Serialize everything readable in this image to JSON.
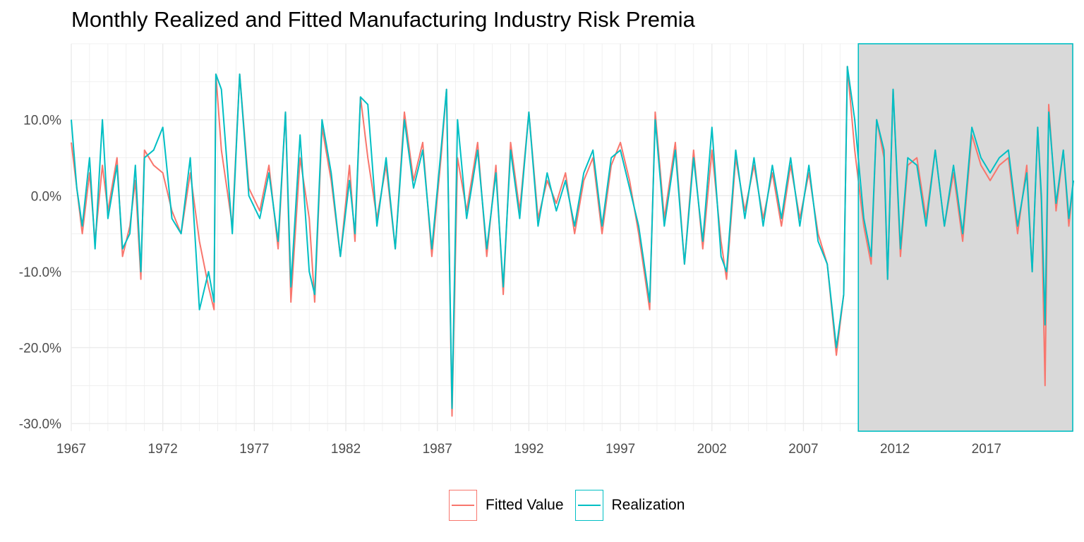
{
  "chart_data": {
    "type": "line",
    "title": "Monthly Realized and Fitted Manufacturing Industry Risk Premia",
    "xlabel": "",
    "ylabel": "",
    "x_range": [
      1967.0,
      2021.75
    ],
    "ylim": [
      -0.31,
      0.2
    ],
    "x_ticks": [
      1967,
      1972,
      1977,
      1982,
      1987,
      1992,
      1997,
      2002,
      2007,
      2012,
      2017
    ],
    "x_tick_labels": [
      "1967",
      "1972",
      "1977",
      "1982",
      "1987",
      "1992",
      "1997",
      "2002",
      "2007",
      "2012",
      "2017"
    ],
    "y_ticks": [
      -0.3,
      -0.2,
      -0.1,
      0.0,
      0.1
    ],
    "y_tick_labels": [
      "-30.0%",
      "-20.0%",
      "-10.0%",
      "0.0%",
      "10.0%"
    ],
    "grid": true,
    "legend_position": "bottom",
    "shaded_region": {
      "x_start": 2010.0,
      "x_end": 2021.75,
      "fill": "#d9d9d9",
      "border": "#00bfc4"
    },
    "series": [
      {
        "name": "Fitted Value",
        "color": "#f8766d",
        "points": [
          [
            1967.0,
            0.07
          ],
          [
            1967.3,
            0.01
          ],
          [
            1967.6,
            -0.05
          ],
          [
            1968.0,
            0.03
          ],
          [
            1968.3,
            -0.06
          ],
          [
            1968.7,
            0.04
          ],
          [
            1969.0,
            -0.02
          ],
          [
            1969.5,
            0.05
          ],
          [
            1969.8,
            -0.08
          ],
          [
            1970.2,
            -0.04
          ],
          [
            1970.5,
            0.02
          ],
          [
            1970.8,
            -0.11
          ],
          [
            1971.0,
            0.06
          ],
          [
            1971.5,
            0.04
          ],
          [
            1972.0,
            0.03
          ],
          [
            1972.5,
            -0.02
          ],
          [
            1973.0,
            -0.05
          ],
          [
            1973.5,
            0.03
          ],
          [
            1974.0,
            -0.06
          ],
          [
            1974.5,
            -0.12
          ],
          [
            1974.8,
            -0.15
          ],
          [
            1974.9,
            0.16
          ],
          [
            1975.2,
            0.06
          ],
          [
            1975.8,
            -0.04
          ],
          [
            1976.2,
            0.16
          ],
          [
            1976.7,
            0.01
          ],
          [
            1977.3,
            -0.02
          ],
          [
            1977.8,
            0.04
          ],
          [
            1978.3,
            -0.07
          ],
          [
            1978.7,
            0.11
          ],
          [
            1979.0,
            -0.14
          ],
          [
            1979.5,
            0.05
          ],
          [
            1980.0,
            -0.03
          ],
          [
            1980.3,
            -0.14
          ],
          [
            1980.7,
            0.09
          ],
          [
            1981.2,
            0.02
          ],
          [
            1981.7,
            -0.08
          ],
          [
            1982.2,
            0.04
          ],
          [
            1982.5,
            -0.06
          ],
          [
            1982.8,
            0.13
          ],
          [
            1983.2,
            0.05
          ],
          [
            1983.7,
            -0.03
          ],
          [
            1984.2,
            0.04
          ],
          [
            1984.7,
            -0.07
          ],
          [
            1985.2,
            0.11
          ],
          [
            1985.7,
            0.02
          ],
          [
            1986.2,
            0.07
          ],
          [
            1986.7,
            -0.08
          ],
          [
            1987.2,
            0.05
          ],
          [
            1987.5,
            0.14
          ],
          [
            1987.8,
            -0.29
          ],
          [
            1988.1,
            0.05
          ],
          [
            1988.6,
            -0.02
          ],
          [
            1989.2,
            0.07
          ],
          [
            1989.7,
            -0.08
          ],
          [
            1990.2,
            0.04
          ],
          [
            1990.6,
            -0.13
          ],
          [
            1991.0,
            0.07
          ],
          [
            1991.5,
            -0.02
          ],
          [
            1992.0,
            0.11
          ],
          [
            1992.5,
            -0.03
          ],
          [
            1993.0,
            0.02
          ],
          [
            1993.5,
            -0.01
          ],
          [
            1994.0,
            0.03
          ],
          [
            1994.5,
            -0.05
          ],
          [
            1995.0,
            0.02
          ],
          [
            1995.5,
            0.05
          ],
          [
            1996.0,
            -0.05
          ],
          [
            1996.5,
            0.04
          ],
          [
            1997.0,
            0.07
          ],
          [
            1997.5,
            0.02
          ],
          [
            1998.0,
            -0.05
          ],
          [
            1998.6,
            -0.15
          ],
          [
            1998.9,
            0.11
          ],
          [
            1999.4,
            -0.03
          ],
          [
            2000.0,
            0.07
          ],
          [
            2000.5,
            -0.09
          ],
          [
            2001.0,
            0.06
          ],
          [
            2001.5,
            -0.07
          ],
          [
            2002.0,
            0.06
          ],
          [
            2002.5,
            -0.06
          ],
          [
            2002.8,
            -0.11
          ],
          [
            2003.3,
            0.05
          ],
          [
            2003.8,
            -0.02
          ],
          [
            2004.3,
            0.04
          ],
          [
            2004.8,
            -0.03
          ],
          [
            2005.3,
            0.03
          ],
          [
            2005.8,
            -0.04
          ],
          [
            2006.3,
            0.04
          ],
          [
            2006.8,
            -0.03
          ],
          [
            2007.3,
            0.03
          ],
          [
            2007.8,
            -0.05
          ],
          [
            2008.3,
            -0.09
          ],
          [
            2008.8,
            -0.21
          ],
          [
            2009.2,
            -0.13
          ],
          [
            2009.4,
            0.17
          ],
          [
            2009.8,
            0.06
          ],
          [
            2010.3,
            -0.04
          ],
          [
            2010.7,
            -0.09
          ],
          [
            2011.0,
            0.1
          ],
          [
            2011.4,
            0.05
          ],
          [
            2011.6,
            -0.11
          ],
          [
            2011.9,
            0.14
          ],
          [
            2012.3,
            -0.08
          ],
          [
            2012.7,
            0.04
          ],
          [
            2013.2,
            0.05
          ],
          [
            2013.7,
            -0.03
          ],
          [
            2014.2,
            0.06
          ],
          [
            2014.7,
            -0.04
          ],
          [
            2015.2,
            0.03
          ],
          [
            2015.7,
            -0.06
          ],
          [
            2016.2,
            0.08
          ],
          [
            2016.7,
            0.04
          ],
          [
            2017.2,
            0.02
          ],
          [
            2017.7,
            0.04
          ],
          [
            2018.2,
            0.05
          ],
          [
            2018.7,
            -0.05
          ],
          [
            2019.2,
            0.04
          ],
          [
            2019.5,
            -0.1
          ],
          [
            2019.8,
            0.09
          ],
          [
            2020.0,
            -0.01
          ],
          [
            2020.2,
            -0.25
          ],
          [
            2020.4,
            0.12
          ],
          [
            2020.8,
            -0.02
          ],
          [
            2021.2,
            0.06
          ],
          [
            2021.5,
            -0.04
          ],
          [
            2021.75,
            0.02
          ]
        ]
      },
      {
        "name": "Realization",
        "color": "#00bfc4",
        "points": [
          [
            1967.0,
            0.1
          ],
          [
            1967.3,
            0.01
          ],
          [
            1967.6,
            -0.04
          ],
          [
            1968.0,
            0.05
          ],
          [
            1968.3,
            -0.07
          ],
          [
            1968.7,
            0.1
          ],
          [
            1969.0,
            -0.03
          ],
          [
            1969.5,
            0.04
          ],
          [
            1969.8,
            -0.07
          ],
          [
            1970.2,
            -0.05
          ],
          [
            1970.5,
            0.04
          ],
          [
            1970.8,
            -0.1
          ],
          [
            1971.0,
            0.05
          ],
          [
            1971.5,
            0.06
          ],
          [
            1972.0,
            0.09
          ],
          [
            1972.5,
            -0.03
          ],
          [
            1973.0,
            -0.05
          ],
          [
            1973.5,
            0.05
          ],
          [
            1974.0,
            -0.15
          ],
          [
            1974.5,
            -0.1
          ],
          [
            1974.8,
            -0.14
          ],
          [
            1974.9,
            0.16
          ],
          [
            1975.2,
            0.14
          ],
          [
            1975.8,
            -0.05
          ],
          [
            1976.2,
            0.16
          ],
          [
            1976.7,
            0.0
          ],
          [
            1977.3,
            -0.03
          ],
          [
            1977.8,
            0.03
          ],
          [
            1978.3,
            -0.06
          ],
          [
            1978.7,
            0.11
          ],
          [
            1979.0,
            -0.12
          ],
          [
            1979.5,
            0.08
          ],
          [
            1980.0,
            -0.1
          ],
          [
            1980.3,
            -0.13
          ],
          [
            1980.7,
            0.1
          ],
          [
            1981.2,
            0.03
          ],
          [
            1981.7,
            -0.08
          ],
          [
            1982.2,
            0.02
          ],
          [
            1982.5,
            -0.05
          ],
          [
            1982.8,
            0.13
          ],
          [
            1983.2,
            0.12
          ],
          [
            1983.7,
            -0.04
          ],
          [
            1984.2,
            0.05
          ],
          [
            1984.7,
            -0.07
          ],
          [
            1985.2,
            0.1
          ],
          [
            1985.7,
            0.01
          ],
          [
            1986.2,
            0.06
          ],
          [
            1986.7,
            -0.07
          ],
          [
            1987.2,
            0.06
          ],
          [
            1987.5,
            0.14
          ],
          [
            1987.8,
            -0.28
          ],
          [
            1988.1,
            0.1
          ],
          [
            1988.6,
            -0.03
          ],
          [
            1989.2,
            0.06
          ],
          [
            1989.7,
            -0.07
          ],
          [
            1990.2,
            0.03
          ],
          [
            1990.6,
            -0.12
          ],
          [
            1991.0,
            0.06
          ],
          [
            1991.5,
            -0.03
          ],
          [
            1992.0,
            0.11
          ],
          [
            1992.5,
            -0.04
          ],
          [
            1993.0,
            0.03
          ],
          [
            1993.5,
            -0.02
          ],
          [
            1994.0,
            0.02
          ],
          [
            1994.5,
            -0.04
          ],
          [
            1995.0,
            0.03
          ],
          [
            1995.5,
            0.06
          ],
          [
            1996.0,
            -0.04
          ],
          [
            1996.5,
            0.05
          ],
          [
            1997.0,
            0.06
          ],
          [
            1997.5,
            0.01
          ],
          [
            1998.0,
            -0.04
          ],
          [
            1998.6,
            -0.14
          ],
          [
            1998.9,
            0.1
          ],
          [
            1999.4,
            -0.04
          ],
          [
            2000.0,
            0.06
          ],
          [
            2000.5,
            -0.09
          ],
          [
            2001.0,
            0.05
          ],
          [
            2001.5,
            -0.06
          ],
          [
            2002.0,
            0.09
          ],
          [
            2002.5,
            -0.08
          ],
          [
            2002.8,
            -0.1
          ],
          [
            2003.3,
            0.06
          ],
          [
            2003.8,
            -0.03
          ],
          [
            2004.3,
            0.05
          ],
          [
            2004.8,
            -0.04
          ],
          [
            2005.3,
            0.04
          ],
          [
            2005.8,
            -0.03
          ],
          [
            2006.3,
            0.05
          ],
          [
            2006.8,
            -0.04
          ],
          [
            2007.3,
            0.04
          ],
          [
            2007.8,
            -0.06
          ],
          [
            2008.3,
            -0.09
          ],
          [
            2008.8,
            -0.2
          ],
          [
            2009.2,
            -0.13
          ],
          [
            2009.4,
            0.17
          ],
          [
            2009.8,
            0.1
          ],
          [
            2010.3,
            -0.03
          ],
          [
            2010.7,
            -0.08
          ],
          [
            2011.0,
            0.1
          ],
          [
            2011.4,
            0.06
          ],
          [
            2011.6,
            -0.11
          ],
          [
            2011.9,
            0.14
          ],
          [
            2012.3,
            -0.07
          ],
          [
            2012.7,
            0.05
          ],
          [
            2013.2,
            0.04
          ],
          [
            2013.7,
            -0.04
          ],
          [
            2014.2,
            0.06
          ],
          [
            2014.7,
            -0.04
          ],
          [
            2015.2,
            0.04
          ],
          [
            2015.7,
            -0.05
          ],
          [
            2016.2,
            0.09
          ],
          [
            2016.7,
            0.05
          ],
          [
            2017.2,
            0.03
          ],
          [
            2017.7,
            0.05
          ],
          [
            2018.2,
            0.06
          ],
          [
            2018.7,
            -0.04
          ],
          [
            2019.2,
            0.03
          ],
          [
            2019.5,
            -0.1
          ],
          [
            2019.8,
            0.09
          ],
          [
            2020.0,
            0.0
          ],
          [
            2020.2,
            -0.17
          ],
          [
            2020.4,
            0.11
          ],
          [
            2020.8,
            -0.01
          ],
          [
            2021.2,
            0.06
          ],
          [
            2021.5,
            -0.03
          ],
          [
            2021.75,
            0.02
          ]
        ]
      }
    ]
  }
}
